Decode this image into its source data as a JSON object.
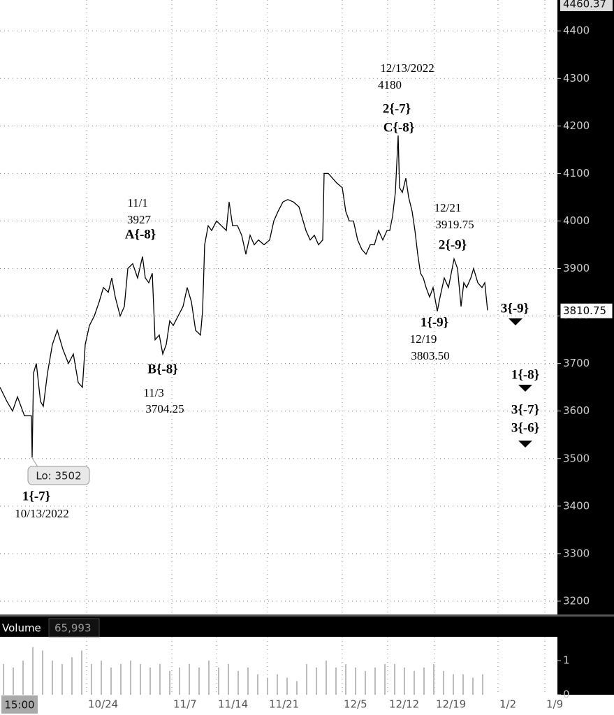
{
  "chart_data": [
    {
      "type": "line",
      "color": "#000000",
      "x": [
        0,
        10,
        18,
        25,
        35,
        45,
        46,
        48,
        52,
        58,
        62,
        68,
        75,
        82,
        90,
        98,
        105,
        112,
        118,
        122,
        128,
        135,
        142,
        148,
        155,
        160,
        165,
        172,
        178,
        183,
        190,
        197,
        204,
        208,
        213,
        218,
        222,
        228,
        233,
        238,
        243,
        248,
        255,
        262,
        268,
        274,
        280,
        287,
        290,
        293,
        298,
        303,
        310,
        317,
        324,
        328,
        333,
        340,
        346,
        352,
        358,
        364,
        370,
        378,
        386,
        392,
        398,
        405,
        412,
        420,
        428,
        432,
        438,
        444,
        450,
        456,
        462,
        464,
        470,
        476,
        482,
        490,
        495,
        500,
        506,
        512,
        518,
        524,
        530,
        536,
        542,
        548,
        554,
        558,
        562,
        566,
        570,
        572,
        576,
        581,
        585,
        590,
        594,
        598,
        602,
        606,
        610,
        615,
        620,
        626,
        630,
        636,
        642,
        646,
        650,
        655,
        660,
        664,
        668,
        674,
        678,
        684,
        690,
        694,
        698
      ],
      "values": [
        3650,
        3620,
        3600,
        3630,
        3590,
        3590,
        3502,
        3680,
        3700,
        3620,
        3610,
        3680,
        3740,
        3770,
        3730,
        3700,
        3720,
        3660,
        3650,
        3740,
        3780,
        3800,
        3830,
        3860,
        3850,
        3880,
        3840,
        3800,
        3820,
        3900,
        3910,
        3880,
        3925,
        3880,
        3870,
        3890,
        3750,
        3760,
        3720,
        3740,
        3790,
        3780,
        3800,
        3820,
        3860,
        3830,
        3770,
        3760,
        3810,
        3950,
        3990,
        3980,
        4000,
        3990,
        3980,
        4040,
        3990,
        3990,
        3970,
        3930,
        3970,
        3950,
        3960,
        3950,
        3960,
        4000,
        4020,
        4040,
        4045,
        4040,
        4030,
        4010,
        3980,
        3960,
        3970,
        3950,
        3960,
        4100,
        4100,
        4090,
        4080,
        4070,
        4020,
        4000,
        4000,
        3960,
        3940,
        3930,
        3950,
        3950,
        3980,
        3960,
        3980,
        3980,
        4010,
        4060,
        4180,
        4070,
        4060,
        4090,
        4050,
        4020,
        3980,
        3930,
        3890,
        3880,
        3860,
        3840,
        3860,
        3810,
        3840,
        3880,
        3860,
        3890,
        3920,
        3900,
        3820,
        3870,
        3860,
        3880,
        3900,
        3870,
        3860,
        3870,
        3812
      ],
      "xlim": [
        0,
        798
      ],
      "ylim": [
        3172,
        4465
      ],
      "yticks": [
        3200,
        3300,
        3400,
        3500,
        3600,
        3700,
        3800,
        3900,
        4000,
        4100,
        4200,
        4300,
        4400
      ],
      "xticks": [
        {
          "value": 124,
          "label": "10/24"
        },
        {
          "value": 246,
          "label": "11/7"
        },
        {
          "value": 310,
          "label": "11/14"
        },
        {
          "value": 383,
          "label": "11/21"
        },
        {
          "value": 490,
          "label": "12/5"
        },
        {
          "value": 555,
          "label": "12/12"
        },
        {
          "value": 622,
          "label": "12/19"
        },
        {
          "value": 713,
          "label": "1/2"
        },
        {
          "value": 780,
          "label": "1/9"
        }
      ],
      "grid": true,
      "high_label": 4460.37,
      "last_price": 3810.75,
      "low_callout": "Lo: 3502",
      "time_label": "15:00",
      "annotations": [
        "1{-7}",
        "10/13/2022",
        "11/1",
        "3927",
        "A{-8}",
        "B{-8}",
        "11/3",
        "3704.25",
        "12/13/2022",
        "4180",
        "2{-7}",
        "C{-8}",
        "12/21",
        "3919.75",
        "2{-9}",
        "1{-9}",
        "12/19",
        "3803.50",
        "3{-9}",
        "1{-8}",
        "3{-7}",
        "3{-6}"
      ]
    },
    {
      "type": "bar",
      "title": "Volume",
      "reading": "65,993",
      "color": "#bbbbbb",
      "x": [
        5,
        19,
        33,
        47,
        61,
        75,
        89,
        103,
        117,
        131,
        145,
        159,
        173,
        187,
        201,
        215,
        229,
        243,
        257,
        271,
        285,
        299,
        313,
        327,
        341,
        355,
        369,
        383,
        397,
        411,
        425,
        439,
        453,
        467,
        481,
        495,
        509,
        523,
        537,
        551,
        565,
        579,
        593,
        607,
        621,
        635,
        649,
        663,
        677,
        691
      ],
      "values": [
        0.9,
        0.8,
        1.0,
        1.4,
        1.3,
        1.0,
        0.9,
        1.1,
        1.3,
        0.9,
        1.0,
        0.8,
        0.9,
        1.0,
        0.9,
        0.8,
        0.9,
        0.7,
        0.8,
        0.9,
        0.8,
        1.0,
        0.8,
        0.9,
        0.7,
        0.8,
        0.6,
        0.5,
        0.6,
        0.5,
        0.4,
        0.9,
        0.8,
        1.0,
        0.8,
        0.9,
        0.8,
        0.7,
        0.8,
        0.9,
        0.9,
        0.8,
        0.7,
        0.8,
        0.9,
        0.7,
        0.6,
        0.6,
        0.5,
        0.6
      ],
      "ylim": [
        0,
        1.7
      ],
      "yticks": [
        0,
        1
      ]
    }
  ]
}
